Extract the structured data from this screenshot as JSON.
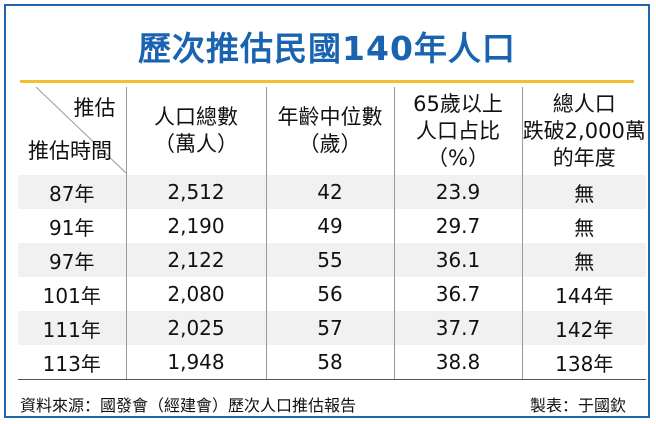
{
  "title": "歷次推估民國140年人口",
  "chart_data": {
    "type": "table",
    "corner_top": "推估",
    "corner_bottom": "推估時間",
    "columns": [
      [
        "人口總數",
        "（萬人）"
      ],
      [
        "年齡中位數",
        "（歲）"
      ],
      [
        "65歲以上",
        "人口占比",
        "（%）"
      ],
      [
        "總人口",
        "跌破2,000萬",
        "的年度"
      ]
    ],
    "rows": [
      {
        "label": "87年",
        "values": [
          "2,512",
          "42",
          "23.9",
          "無"
        ]
      },
      {
        "label": "91年",
        "values": [
          "2,190",
          "49",
          "29.7",
          "無"
        ]
      },
      {
        "label": "97年",
        "values": [
          "2,122",
          "55",
          "36.1",
          "無"
        ]
      },
      {
        "label": "101年",
        "values": [
          "2,080",
          "56",
          "36.7",
          "144年"
        ]
      },
      {
        "label": "111年",
        "values": [
          "2,025",
          "57",
          "37.7",
          "142年"
        ]
      },
      {
        "label": "113年",
        "values": [
          "1,948",
          "58",
          "38.8",
          "138年"
        ]
      }
    ]
  },
  "footer": {
    "source": "資料來源：國發會（經建會）歷次人口推估報告",
    "maker": "製表：于國欽"
  },
  "colors": {
    "title": "#1a63b0",
    "border": "#1e66ad",
    "accent_line": "#f0c030",
    "row_shade": "#f1f1f1"
  }
}
